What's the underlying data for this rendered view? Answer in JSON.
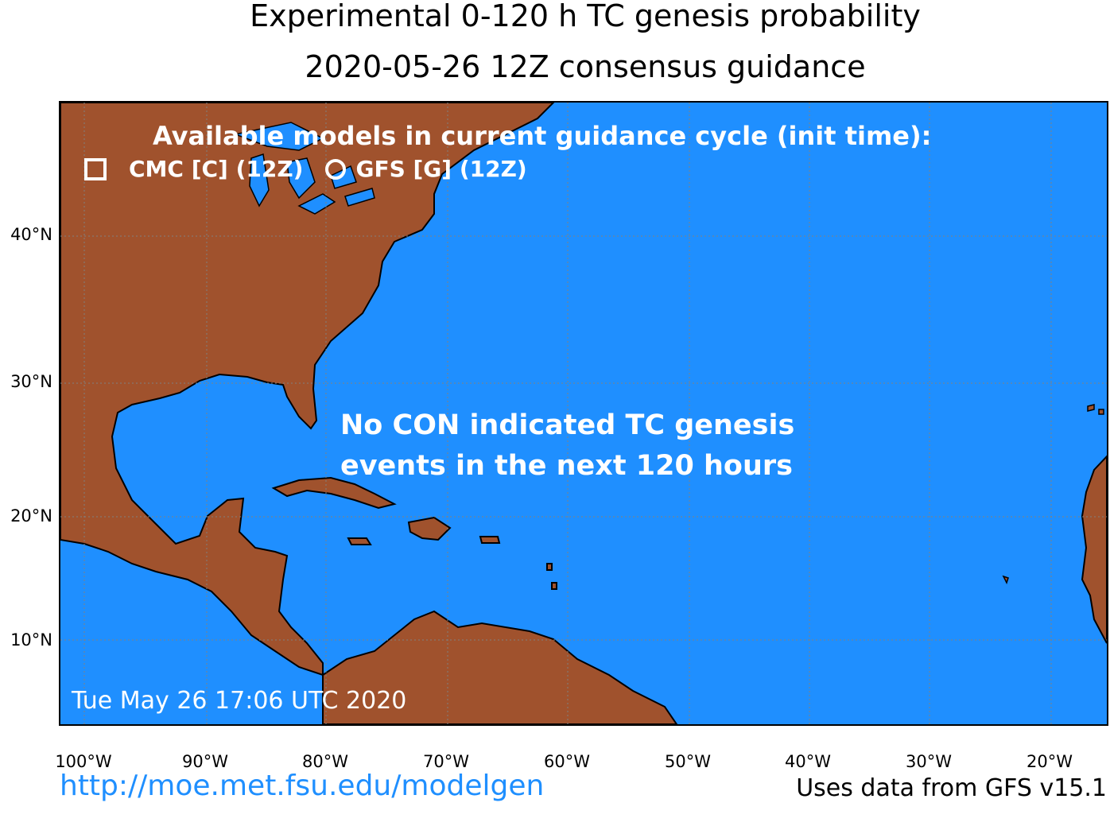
{
  "titles": {
    "line1": "Experimental 0-120 h TC genesis probability",
    "line2": "2020-05-26 12Z consensus guidance"
  },
  "legend": {
    "heading": "Available models in current guidance cycle (init time):",
    "models": [
      {
        "label": "CMC [C] (12Z)",
        "marker": "square-icon"
      },
      {
        "label": "GFS [G] (12Z)",
        "marker": "circle-icon"
      }
    ]
  },
  "message": {
    "line1": "No CON indicated TC genesis",
    "line2": "events in the next 120 hours"
  },
  "timestamp": "Tue May 26 17:06 UTC 2020",
  "axes": {
    "lat_labels": [
      "40°N",
      "30°N",
      "20°N",
      "10°N"
    ],
    "lon_labels": [
      "100°W",
      "90°W",
      "80°W",
      "70°W",
      "60°W",
      "50°W",
      "40°W",
      "30°W",
      "20°W"
    ]
  },
  "footer": {
    "link": "http://moe.met.fsu.edu/modelgen",
    "source": "Uses data from GFS v15.1"
  },
  "colors": {
    "ocean": "#1f8fff",
    "land": "#a0522d",
    "text_overlay": "#ffffff",
    "link": "#1f8fff"
  }
}
